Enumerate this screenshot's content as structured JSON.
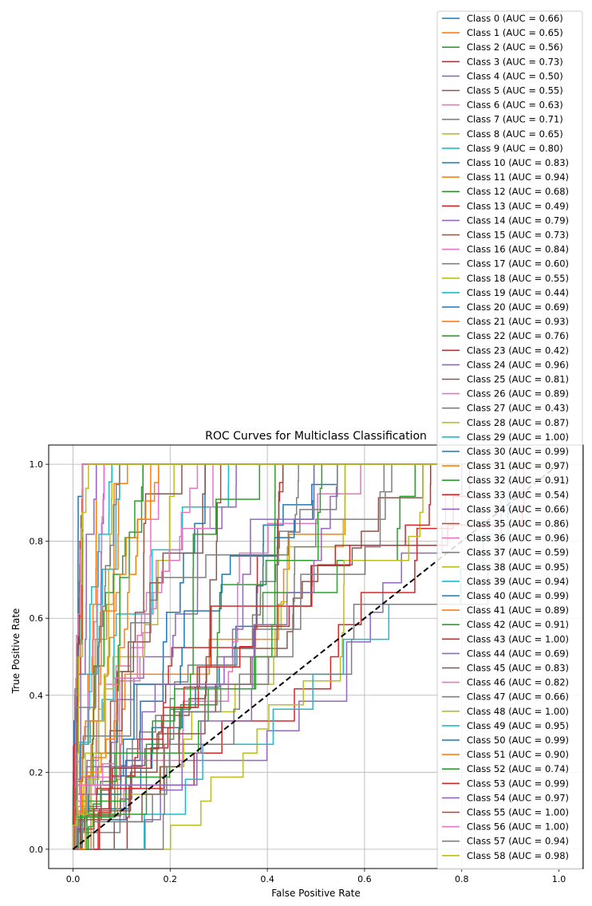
{
  "chart_data": {
    "type": "line",
    "title": "ROC Curves for Multiclass Classification",
    "xlabel": "False Positive Rate",
    "ylabel": "True Positive Rate",
    "xlim": [
      -0.05,
      1.05
    ],
    "ylim": [
      -0.05,
      1.05
    ],
    "xticks": [
      "0.0",
      "0.2",
      "0.4",
      "0.6",
      "0.8",
      "1.0"
    ],
    "yticks": [
      "0.0",
      "0.2",
      "0.4",
      "0.6",
      "0.8",
      "1.0"
    ],
    "grid": true,
    "legend_position": "top-right",
    "diagonal": {
      "x": [
        0,
        1
      ],
      "y": [
        0,
        1
      ],
      "style": "dashed",
      "color": "#000000"
    },
    "palette": [
      "#1f77b4",
      "#ff7f0e",
      "#2ca02c",
      "#d62728",
      "#9467bd",
      "#8c564b",
      "#e377c2",
      "#7f7f7f",
      "#bcbd22",
      "#17becf"
    ],
    "series": [
      {
        "name": "Class 0 (AUC = 0.66)",
        "auc": 0.66
      },
      {
        "name": "Class 1 (AUC = 0.65)",
        "auc": 0.65
      },
      {
        "name": "Class 2 (AUC = 0.56)",
        "auc": 0.56
      },
      {
        "name": "Class 3 (AUC = 0.73)",
        "auc": 0.73
      },
      {
        "name": "Class 4 (AUC = 0.50)",
        "auc": 0.5
      },
      {
        "name": "Class 5 (AUC = 0.55)",
        "auc": 0.55
      },
      {
        "name": "Class 6 (AUC = 0.63)",
        "auc": 0.63
      },
      {
        "name": "Class 7 (AUC = 0.71)",
        "auc": 0.71
      },
      {
        "name": "Class 8 (AUC = 0.65)",
        "auc": 0.65
      },
      {
        "name": "Class 9 (AUC = 0.80)",
        "auc": 0.8
      },
      {
        "name": "Class 10 (AUC = 0.83)",
        "auc": 0.83
      },
      {
        "name": "Class 11 (AUC = 0.94)",
        "auc": 0.94
      },
      {
        "name": "Class 12 (AUC = 0.68)",
        "auc": 0.68
      },
      {
        "name": "Class 13 (AUC = 0.49)",
        "auc": 0.49
      },
      {
        "name": "Class 14 (AUC = 0.79)",
        "auc": 0.79
      },
      {
        "name": "Class 15 (AUC = 0.73)",
        "auc": 0.73
      },
      {
        "name": "Class 16 (AUC = 0.84)",
        "auc": 0.84
      },
      {
        "name": "Class 17 (AUC = 0.60)",
        "auc": 0.6
      },
      {
        "name": "Class 18 (AUC = 0.55)",
        "auc": 0.55
      },
      {
        "name": "Class 19 (AUC = 0.44)",
        "auc": 0.44
      },
      {
        "name": "Class 20 (AUC = 0.69)",
        "auc": 0.69
      },
      {
        "name": "Class 21 (AUC = 0.93)",
        "auc": 0.93
      },
      {
        "name": "Class 22 (AUC = 0.76)",
        "auc": 0.76
      },
      {
        "name": "Class 23 (AUC = 0.42)",
        "auc": 0.42
      },
      {
        "name": "Class 24 (AUC = 0.96)",
        "auc": 0.96
      },
      {
        "name": "Class 25 (AUC = 0.81)",
        "auc": 0.81
      },
      {
        "name": "Class 26 (AUC = 0.89)",
        "auc": 0.89
      },
      {
        "name": "Class 27 (AUC = 0.43)",
        "auc": 0.43
      },
      {
        "name": "Class 28 (AUC = 0.87)",
        "auc": 0.87
      },
      {
        "name": "Class 29 (AUC = 1.00)",
        "auc": 1.0
      },
      {
        "name": "Class 30 (AUC = 0.99)",
        "auc": 0.99
      },
      {
        "name": "Class 31 (AUC = 0.97)",
        "auc": 0.97
      },
      {
        "name": "Class 32 (AUC = 0.91)",
        "auc": 0.91
      },
      {
        "name": "Class 33 (AUC = 0.54)",
        "auc": 0.54
      },
      {
        "name": "Class 34 (AUC = 0.66)",
        "auc": 0.66
      },
      {
        "name": "Class 35 (AUC = 0.86)",
        "auc": 0.86
      },
      {
        "name": "Class 36 (AUC = 0.96)",
        "auc": 0.96
      },
      {
        "name": "Class 37 (AUC = 0.59)",
        "auc": 0.59
      },
      {
        "name": "Class 38 (AUC = 0.95)",
        "auc": 0.95
      },
      {
        "name": "Class 39 (AUC = 0.94)",
        "auc": 0.94
      },
      {
        "name": "Class 40 (AUC = 0.99)",
        "auc": 0.99
      },
      {
        "name": "Class 41 (AUC = 0.89)",
        "auc": 0.89
      },
      {
        "name": "Class 42 (AUC = 0.91)",
        "auc": 0.91
      },
      {
        "name": "Class 43 (AUC = 1.00)",
        "auc": 1.0
      },
      {
        "name": "Class 44 (AUC = 0.69)",
        "auc": 0.69
      },
      {
        "name": "Class 45 (AUC = 0.83)",
        "auc": 0.83
      },
      {
        "name": "Class 46 (AUC = 0.82)",
        "auc": 0.82
      },
      {
        "name": "Class 47 (AUC = 0.66)",
        "auc": 0.66
      },
      {
        "name": "Class 48 (AUC = 1.00)",
        "auc": 1.0
      },
      {
        "name": "Class 49 (AUC = 0.95)",
        "auc": 0.95
      },
      {
        "name": "Class 50 (AUC = 0.99)",
        "auc": 0.99
      },
      {
        "name": "Class 51 (AUC = 0.90)",
        "auc": 0.9
      },
      {
        "name": "Class 52 (AUC = 0.74)",
        "auc": 0.74
      },
      {
        "name": "Class 53 (AUC = 0.99)",
        "auc": 0.99
      },
      {
        "name": "Class 54 (AUC = 0.97)",
        "auc": 0.97
      },
      {
        "name": "Class 55 (AUC = 1.00)",
        "auc": 1.0
      },
      {
        "name": "Class 56 (AUC = 1.00)",
        "auc": 1.0
      },
      {
        "name": "Class 57 (AUC = 0.94)",
        "auc": 0.94
      },
      {
        "name": "Class 58 (AUC = 0.98)",
        "auc": 0.98
      }
    ]
  }
}
